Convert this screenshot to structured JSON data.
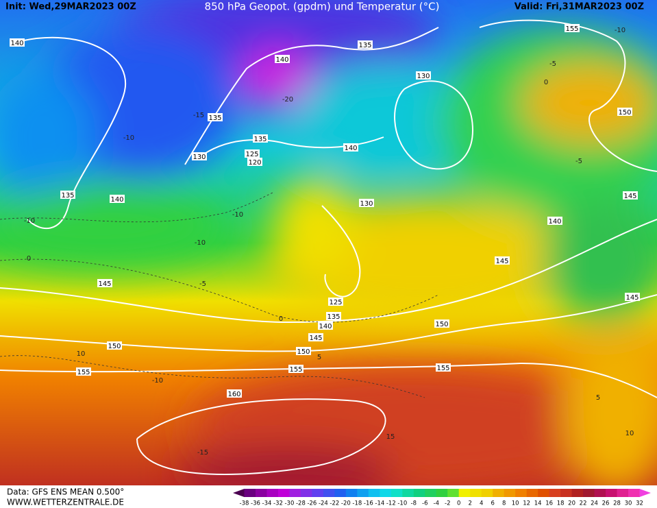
{
  "header": {
    "init": "Init: Wed,29MAR2023 00Z",
    "title": "850 hPa Geopot. (gpdm) und Temperatur (°C)",
    "valid": "Valid: Fri,31MAR2023 00Z"
  },
  "footer": {
    "data": "Data: GFS ENS MEAN 0.500°",
    "site": "WWW.WETTERZENTRALE.DE"
  },
  "scale": {
    "labels": [
      -38,
      -36,
      -34,
      -32,
      -30,
      -28,
      -26,
      -24,
      -22,
      -20,
      -18,
      -16,
      -14,
      -12,
      -10,
      -8,
      -6,
      -4,
      -2,
      0,
      2,
      4,
      6,
      8,
      10,
      12,
      14,
      16,
      18,
      20,
      22,
      24,
      26,
      28,
      30,
      32
    ],
    "colors": [
      "#4b0050",
      "#6a0080",
      "#8a00a0",
      "#a800c0",
      "#c000d8",
      "#a020e0",
      "#8030e8",
      "#6040f0",
      "#4050f0",
      "#2060f0",
      "#1080f0",
      "#10a0f0",
      "#10c0f0",
      "#10d8e8",
      "#10e0c8",
      "#10d8a0",
      "#10d080",
      "#20d060",
      "#30d040",
      "#60e030",
      "#f0f000",
      "#f0e000",
      "#f0d000",
      "#f0b000",
      "#f09800",
      "#f08000",
      "#e86800",
      "#e05000",
      "#d84020",
      "#c83020",
      "#b02020",
      "#a01830",
      "#b01050",
      "#c81070",
      "#e02090",
      "#f030b0",
      "#f040e0"
    ]
  },
  "labels": {
    "geopotential": [
      140,
      135,
      155,
      140,
      130,
      150,
      135,
      135,
      140,
      125,
      120,
      130,
      135,
      140,
      130,
      145,
      140,
      145,
      145,
      125,
      135,
      140,
      145,
      150,
      150,
      150,
      155,
      155,
      155,
      160,
      145
    ],
    "temperature": [
      -15,
      -10,
      -10,
      -10,
      -10,
      -5,
      0,
      0,
      5,
      10,
      -10,
      -15,
      10,
      5,
      0,
      -5,
      -10,
      -20,
      15,
      -5
    ]
  }
}
